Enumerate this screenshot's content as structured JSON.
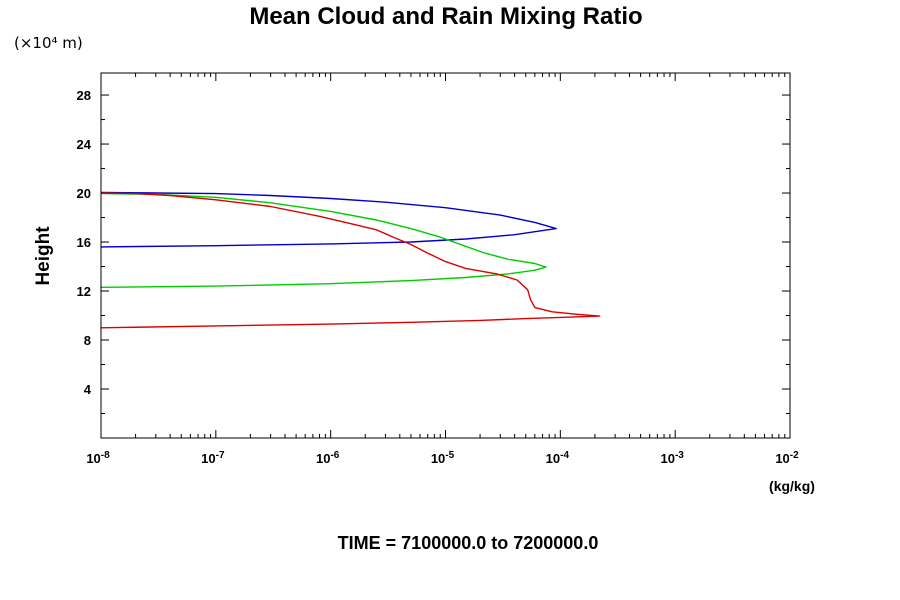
{
  "chart_data": {
    "type": "line",
    "title": "Mean Cloud and Rain Mixing Ratio",
    "ylabel": "Height",
    "y_units": "(×10⁴ m)",
    "x_units": "(kg/kg)",
    "x_scale": "log",
    "xlim": [
      1e-08,
      0.01
    ],
    "ylim": [
      0,
      29.8
    ],
    "x_ticks": [
      {
        "base": "10",
        "exp": "-8"
      },
      {
        "base": "10",
        "exp": "-7"
      },
      {
        "base": "10",
        "exp": "-6"
      },
      {
        "base": "10",
        "exp": "-5"
      },
      {
        "base": "10",
        "exp": "-4"
      },
      {
        "base": "10",
        "exp": "-3"
      },
      {
        "base": "10",
        "exp": "-2"
      }
    ],
    "y_ticks": [
      "4",
      "8",
      "12",
      "16",
      "20",
      "24",
      "28"
    ],
    "footer": "TIME = 7100000.0 to 7200000.0",
    "series": [
      {
        "name": "blue",
        "color": "#0000cc",
        "points": [
          [
            1e-08,
            15.6
          ],
          [
            1e-07,
            15.7
          ],
          [
            1e-06,
            15.85
          ],
          [
            5e-06,
            16.0
          ],
          [
            1.5e-05,
            16.25
          ],
          [
            4e-05,
            16.6
          ],
          [
            9.2e-05,
            17.1
          ],
          [
            6e-05,
            17.6
          ],
          [
            3e-05,
            18.2
          ],
          [
            1e-05,
            18.8
          ],
          [
            3e-06,
            19.25
          ],
          [
            1e-06,
            19.55
          ],
          [
            3e-07,
            19.8
          ],
          [
            1e-07,
            19.95
          ],
          [
            3e-08,
            20.0
          ],
          [
            1e-08,
            20.05
          ]
        ]
      },
      {
        "name": "green",
        "color": "#00cc00",
        "points": [
          [
            1e-08,
            12.3
          ],
          [
            1e-07,
            12.4
          ],
          [
            1e-06,
            12.6
          ],
          [
            5e-06,
            12.85
          ],
          [
            1.5e-05,
            13.1
          ],
          [
            3.5e-05,
            13.4
          ],
          [
            6e-05,
            13.7
          ],
          [
            7.5e-05,
            13.95
          ],
          [
            6e-05,
            14.25
          ],
          [
            3.5e-05,
            14.6
          ],
          [
            2.2e-05,
            15.1
          ],
          [
            1.5e-05,
            15.65
          ],
          [
            9e-06,
            16.4
          ],
          [
            5e-06,
            17.1
          ],
          [
            2.5e-06,
            17.8
          ],
          [
            1e-06,
            18.5
          ],
          [
            3e-07,
            19.2
          ],
          [
            1e-07,
            19.65
          ],
          [
            3e-08,
            19.9
          ],
          [
            1e-08,
            19.95
          ]
        ]
      },
      {
        "name": "red",
        "color": "#dd0000",
        "points": [
          [
            1e-08,
            9.0
          ],
          [
            1e-07,
            9.15
          ],
          [
            1e-06,
            9.3
          ],
          [
            5e-06,
            9.45
          ],
          [
            2e-05,
            9.6
          ],
          [
            5e-05,
            9.75
          ],
          [
            0.0001,
            9.85
          ],
          [
            0.00022,
            9.95
          ],
          [
            0.00014,
            10.1
          ],
          [
            8.5e-05,
            10.3
          ],
          [
            6e-05,
            10.65
          ],
          [
            5.5e-05,
            11.3
          ],
          [
            5.2e-05,
            12.1
          ],
          [
            4.2e-05,
            12.9
          ],
          [
            2.8e-05,
            13.4
          ],
          [
            1.5e-05,
            13.85
          ],
          [
            1e-05,
            14.4
          ],
          [
            7e-06,
            15.1
          ],
          [
            5e-06,
            15.8
          ],
          [
            3.5e-06,
            16.4
          ],
          [
            2.5e-06,
            17.0
          ],
          [
            1.5e-06,
            17.5
          ],
          [
            8e-07,
            18.1
          ],
          [
            3e-07,
            18.9
          ],
          [
            1e-07,
            19.45
          ],
          [
            4e-08,
            19.8
          ],
          [
            2e-08,
            19.95
          ],
          [
            1e-08,
            20.0
          ]
        ]
      }
    ]
  }
}
